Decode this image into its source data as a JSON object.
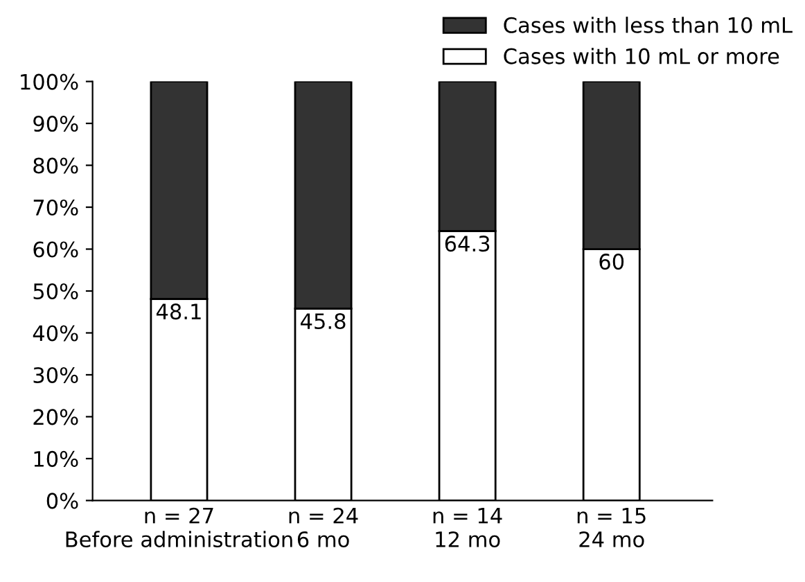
{
  "chart_data": {
    "type": "bar",
    "stacked": true,
    "categories": [
      "n = 27\nBefore administration",
      "n = 24\n6 mo",
      "n = 14\n12 mo",
      "n = 15\n24 mo"
    ],
    "series": [
      {
        "name": "Cases with 10 mL or more",
        "color": "#ffffff",
        "values": [
          48.1,
          45.8,
          64.3,
          60
        ],
        "value_labels": [
          "48.1",
          "45.8",
          "64.3",
          "60"
        ]
      },
      {
        "name": "Cases with less than 10 mL",
        "color": "#333333",
        "values": [
          51.9,
          54.2,
          35.7,
          40
        ],
        "value_labels": [
          null,
          null,
          null,
          null
        ]
      }
    ],
    "ylim": [
      0,
      100
    ],
    "yticks": [
      {
        "value": 0,
        "label": "0%"
      },
      {
        "value": 10,
        "label": "10%"
      },
      {
        "value": 20,
        "label": "20%"
      },
      {
        "value": 30,
        "label": "30%"
      },
      {
        "value": 40,
        "label": "40%"
      },
      {
        "value": 50,
        "label": "50%"
      },
      {
        "value": 60,
        "label": "60%"
      },
      {
        "value": 70,
        "label": "70%"
      },
      {
        "value": 80,
        "label": "80%"
      },
      {
        "value": 90,
        "label": "90%"
      },
      {
        "value": 100,
        "label": "100%"
      }
    ],
    "grid": false,
    "legend": "top right"
  }
}
